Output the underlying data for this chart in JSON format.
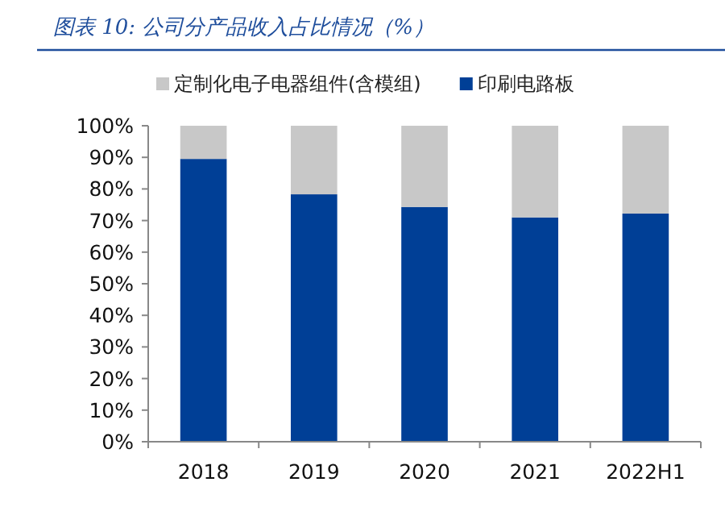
{
  "chart_data": {
    "type": "bar",
    "stacked": true,
    "title": "图表 10: 公司分产品收入占比情况（%）",
    "categories": [
      "2018",
      "2019",
      "2020",
      "2021",
      "2022H1"
    ],
    "series": [
      {
        "name": "印刷电路板",
        "color": "#003f96",
        "values": [
          89.5,
          78.3,
          74.3,
          71.0,
          72.2
        ]
      },
      {
        "name": "定制化电子电器组件(含模组)",
        "color": "#c8c8c8",
        "values": [
          10.5,
          21.7,
          25.7,
          29.0,
          27.8
        ]
      }
    ],
    "ylim": [
      0,
      100
    ],
    "yticks": [
      {
        "value": 0,
        "label": "0%"
      },
      {
        "value": 10,
        "label": "10%"
      },
      {
        "value": 20,
        "label": "20%"
      },
      {
        "value": 30,
        "label": "30%"
      },
      {
        "value": 40,
        "label": "40%"
      },
      {
        "value": 50,
        "label": "50%"
      },
      {
        "value": 60,
        "label": "60%"
      },
      {
        "value": 70,
        "label": "70%"
      },
      {
        "value": 80,
        "label": "80%"
      },
      {
        "value": 90,
        "label": "90%"
      },
      {
        "value": 100,
        "label": "100%"
      }
    ],
    "grid": false,
    "legend": "top"
  }
}
